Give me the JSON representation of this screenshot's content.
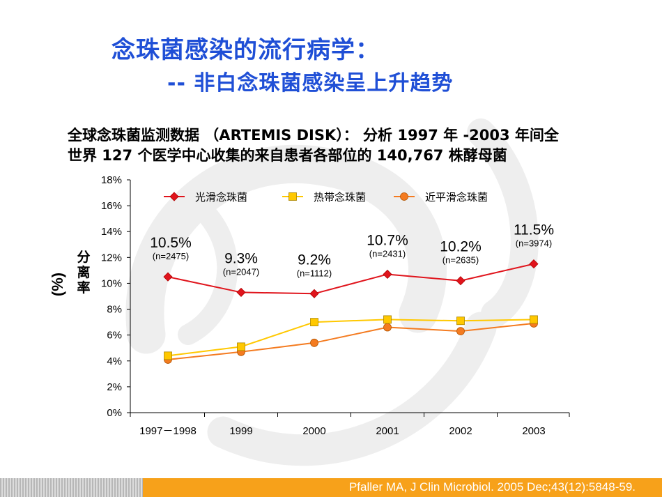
{
  "slide": {
    "title": "念珠菌感染的流行病学：",
    "subtitle": "-- 非白念珠菌感染呈上升趋势",
    "description": "全球念珠菌监测数据 （ARTEMIS DISK）： 分析 1997 年 -2003 年间全世界 127 个医学中心收集的来自患者各部位的 140,767 株酵母菌",
    "citation": "Pfaller MA, J Clin Microbiol. 2005 Dec;43(12):5848-59."
  },
  "chart_data": {
    "type": "line",
    "categories": [
      "1997－1998",
      "1999",
      "2000",
      "2001",
      "2002",
      "2003"
    ],
    "ylabel_unit": "(%)",
    "ylabel": "分离率",
    "ylim": [
      0,
      18
    ],
    "yticks": [
      "0%",
      "2%",
      "4%",
      "6%",
      "8%",
      "10%",
      "12%",
      "14%",
      "16%",
      "18%"
    ],
    "grid": false,
    "legend_position": "top",
    "series": [
      {
        "name": "光滑念珠菌",
        "color": "#e0141c",
        "marker": "diamond",
        "values": [
          10.5,
          9.3,
          9.2,
          10.7,
          10.2,
          11.5
        ]
      },
      {
        "name": "热带念珠菌",
        "color": "#ffc800",
        "marker": "square",
        "values": [
          4.4,
          5.1,
          7.0,
          7.2,
          7.1,
          7.2
        ]
      },
      {
        "name": "近平滑念珠菌",
        "color": "#f47b20",
        "marker": "circle",
        "values": [
          4.1,
          4.7,
          5.4,
          6.6,
          6.3,
          6.9
        ]
      }
    ],
    "annotations": [
      {
        "value": "10.5%",
        "n": "(n=2475)"
      },
      {
        "value": "9.3%",
        "n": "(n=2047)"
      },
      {
        "value": "9.2%",
        "n": "(n=1112)"
      },
      {
        "value": "10.7%",
        "n": "(n=2431)"
      },
      {
        "value": "10.2%",
        "n": "(n=2635)"
      },
      {
        "value": "11.5%",
        "n": "(n=3974)"
      }
    ]
  }
}
